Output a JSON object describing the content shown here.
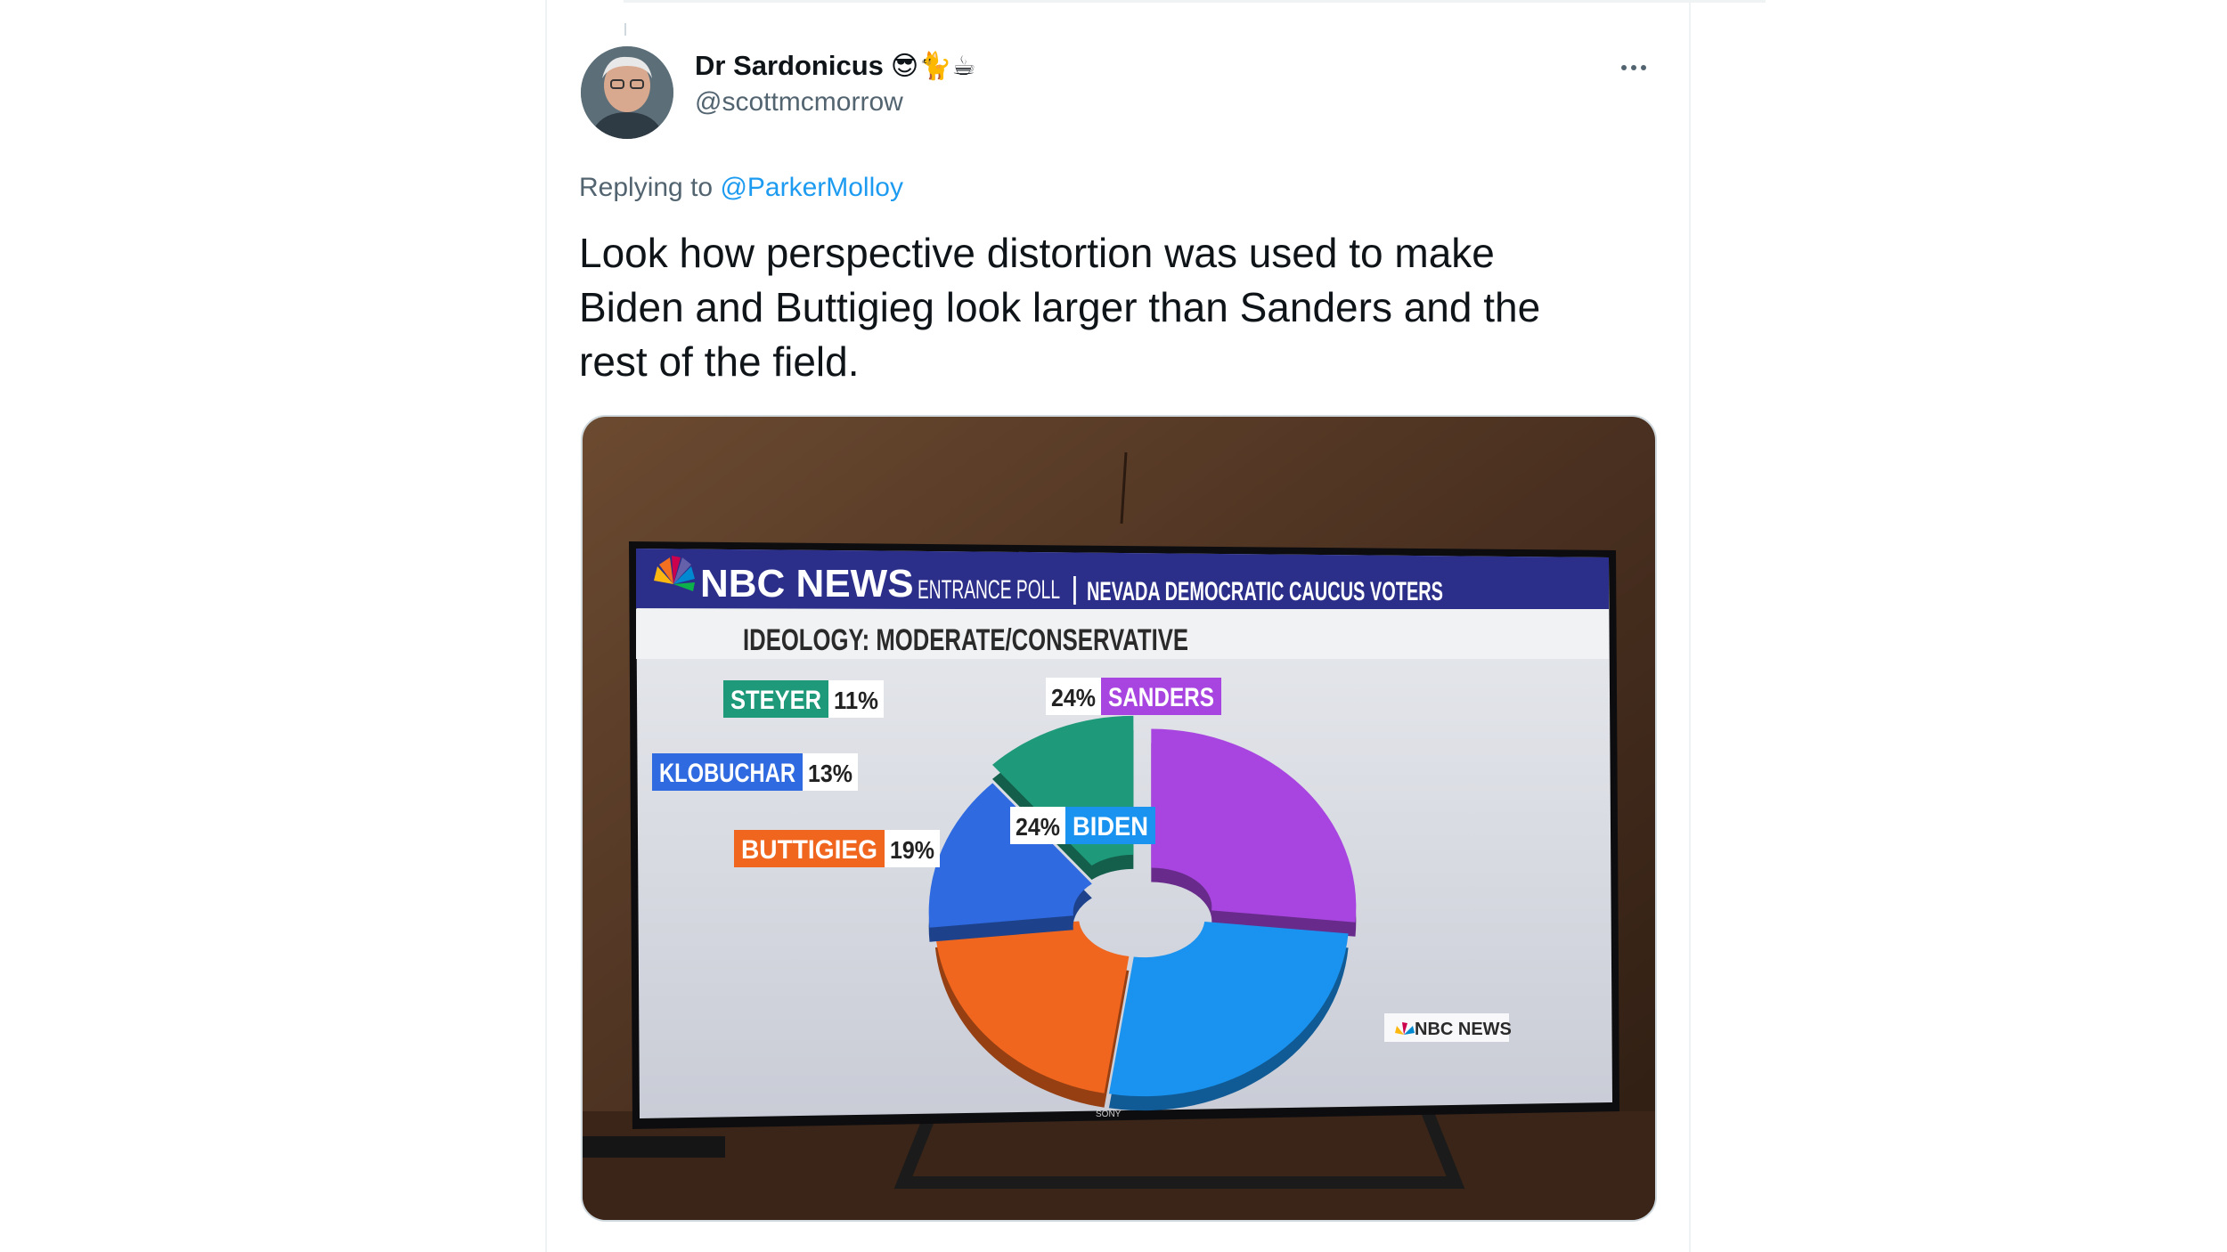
{
  "tweet": {
    "display_name": "Dr Sardonicus",
    "emojis": "😎🐈☕",
    "handle": "@scottmcmorrow",
    "replying_prefix": "Replying to",
    "replying_to": "@ParkerMolloy",
    "text": "Look how perspective distortion was used to make\nBiden and Buttigieg look larger than Sanders and the\nrest of the field."
  },
  "photo": {
    "brand": "NBC NEWS",
    "poll_label": "ENTRANCE POLL",
    "separator": "|",
    "poll_subject": "NEVADA DEMOCRATIC CAUCUS VOTERS",
    "subtitle": "IDEOLOGY: MODERATE/CONSERVATIVE",
    "watermark": "NBC NEWS",
    "tv_brand": "SONY",
    "colors": {
      "sanders": "#a845e0",
      "biden": "#1a93f0",
      "buttigieg": "#f0661e",
      "klobuchar": "#2f6ae0",
      "steyer": "#1e9a7a",
      "banner": "#2b2f8a"
    }
  },
  "chart_data": {
    "type": "pie",
    "title": "IDEOLOGY: MODERATE/CONSERVATIVE",
    "categories": [
      "SANDERS",
      "BIDEN",
      "BUTTIGIEG",
      "KLOBUCHAR",
      "STEYER"
    ],
    "values": [
      24,
      24,
      19,
      13,
      11
    ],
    "value_labels": [
      "24%",
      "24%",
      "19%",
      "13%",
      "11%"
    ],
    "colors": [
      "#a845e0",
      "#1a93f0",
      "#f0661e",
      "#2f6ae0",
      "#1e9a7a"
    ],
    "legend": "none"
  }
}
